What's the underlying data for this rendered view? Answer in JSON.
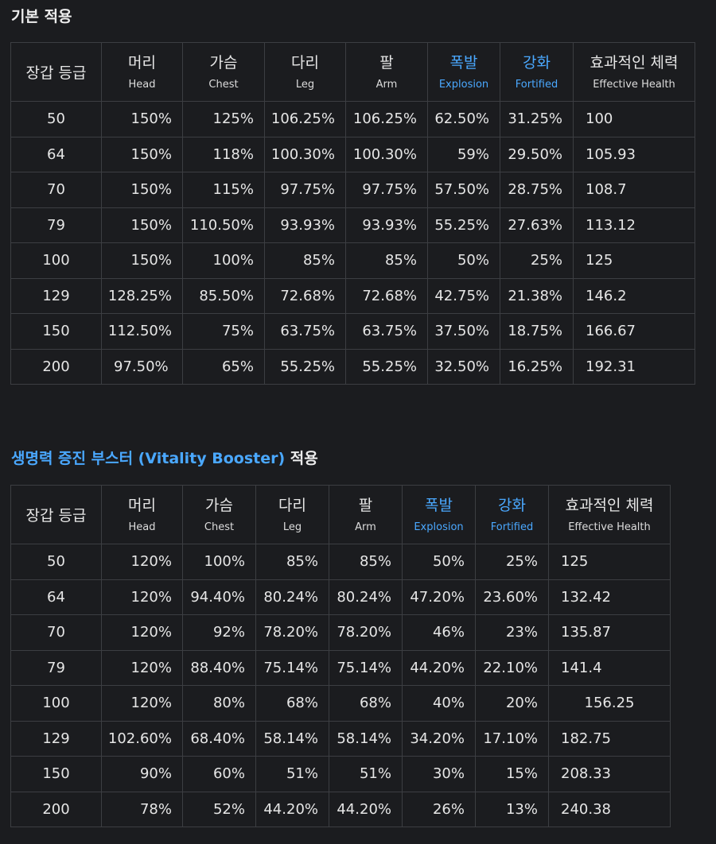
{
  "section1": {
    "title": "기본 적용",
    "headers": [
      {
        "kr": "장갑 등급",
        "en": ""
      },
      {
        "kr": "머리",
        "en": "Head"
      },
      {
        "kr": "가슴",
        "en": "Chest"
      },
      {
        "kr": "다리",
        "en": "Leg"
      },
      {
        "kr": "팔",
        "en": "Arm"
      },
      {
        "kr": "폭발",
        "en": "Explosion"
      },
      {
        "kr": "강화",
        "en": "Fortified"
      },
      {
        "kr": "효과적인 체력",
        "en": "Effective Health"
      }
    ],
    "rows": [
      [
        "50",
        "150%",
        "125%",
        "106.25%",
        "106.25%",
        "62.50%",
        "31.25%",
        "100"
      ],
      [
        "64",
        "150%",
        "118%",
        "100.30%",
        "100.30%",
        "59%",
        "29.50%",
        "105.93"
      ],
      [
        "70",
        "150%",
        "115%",
        "97.75%",
        "97.75%",
        "57.50%",
        "28.75%",
        "108.7"
      ],
      [
        "79",
        "150%",
        "110.50%",
        "93.93%",
        "93.93%",
        "55.25%",
        "27.63%",
        "113.12"
      ],
      [
        "100",
        "150%",
        "100%",
        "85%",
        "85%",
        "50%",
        "25%",
        "125"
      ],
      [
        "129",
        "128.25%",
        "85.50%",
        "72.68%",
        "72.68%",
        "42.75%",
        "21.38%",
        "146.2"
      ],
      [
        "150",
        "112.50%",
        "75%",
        "63.75%",
        "63.75%",
        "37.50%",
        "18.75%",
        "166.67"
      ],
      [
        "200",
        "97.50%",
        "65%",
        "55.25%",
        "55.25%",
        "32.50%",
        "16.25%",
        "192.31"
      ]
    ]
  },
  "section2": {
    "title_accent": "생명력 증진 부스터 (Vitality Booster)",
    "title_rest": " 적용",
    "headers": [
      {
        "kr": "장갑 등급",
        "en": ""
      },
      {
        "kr": "머리",
        "en": "Head"
      },
      {
        "kr": "가슴",
        "en": "Chest"
      },
      {
        "kr": "다리",
        "en": "Leg"
      },
      {
        "kr": "팔",
        "en": "Arm"
      },
      {
        "kr": "폭발",
        "en": "Explosion"
      },
      {
        "kr": "강화",
        "en": "Fortified"
      },
      {
        "kr": "효과적인 체력",
        "en": "Effective Health"
      }
    ],
    "rows": [
      [
        "50",
        "120%",
        "100%",
        "85%",
        "85%",
        "50%",
        "25%",
        "125"
      ],
      [
        "64",
        "120%",
        "94.40%",
        "80.24%",
        "80.24%",
        "47.20%",
        "23.60%",
        "132.42"
      ],
      [
        "70",
        "120%",
        "92%",
        "78.20%",
        "78.20%",
        "46%",
        "23%",
        "135.87"
      ],
      [
        "79",
        "120%",
        "88.40%",
        "75.14%",
        "75.14%",
        "44.20%",
        "22.10%",
        "141.4"
      ],
      [
        "100",
        "120%",
        "80%",
        "68%",
        "68%",
        "40%",
        "20%",
        "156.25"
      ],
      [
        "129",
        "102.60%",
        "68.40%",
        "58.14%",
        "58.14%",
        "34.20%",
        "17.10%",
        "182.75"
      ],
      [
        "150",
        "90%",
        "60%",
        "51%",
        "51%",
        "30%",
        "15%",
        "208.33"
      ],
      [
        "200",
        "78%",
        "52%",
        "44.20%",
        "44.20%",
        "26%",
        "13%",
        "240.38"
      ]
    ]
  },
  "colors": {
    "background": "#1b1c1f",
    "accent": "#4aa8ff",
    "border": "#3c3e42"
  }
}
